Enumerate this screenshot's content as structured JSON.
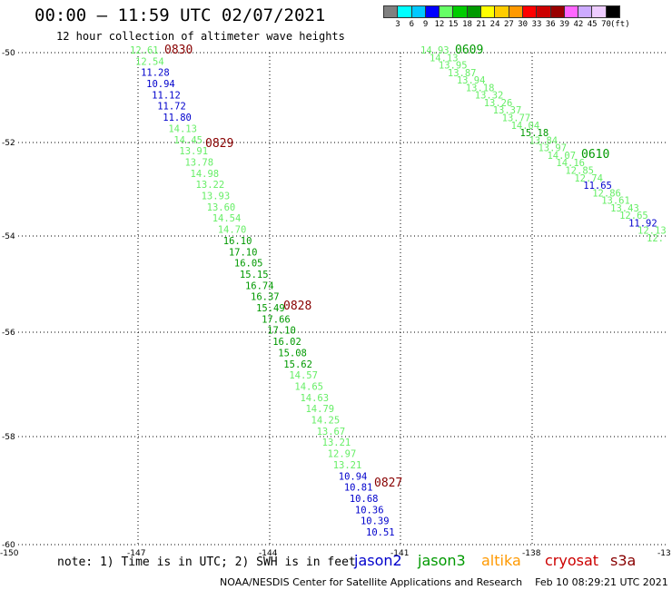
{
  "header": {
    "title": "00:00 — 11:59 UTC 02/07/2021",
    "subtitle": "12 hour collection of altimeter wave heights"
  },
  "color_scale": {
    "colors": [
      "#808080",
      "#00ffff",
      "#00c8ff",
      "#0000ff",
      "#66ff66",
      "#00cc00",
      "#009900",
      "#ffff00",
      "#ffcc00",
      "#ff9900",
      "#ff0000",
      "#cc0000",
      "#990000",
      "#ff66ff",
      "#ccaaff",
      "#eeccff",
      "#000000"
    ],
    "labels": [
      "3",
      "6",
      "9",
      "12",
      "15",
      "18",
      "21",
      "24",
      "27",
      "30",
      "33",
      "36",
      "39",
      "42",
      "45",
      "70",
      "(ft)"
    ]
  },
  "axes": {
    "lat_labels": [
      "-50",
      "-52",
      "-54",
      "-56",
      "-58",
      "-60"
    ],
    "lon_labels": [
      "-150",
      "-147",
      "-144",
      "-141",
      "-138",
      "-13"
    ]
  },
  "track_colors": {
    "blue": "#0000cc",
    "light_green": "#66ee66",
    "dark_green": "#009900",
    "dark_red": "#880000"
  },
  "time_labels": [
    {
      "text": "0830",
      "color": "dark_red"
    },
    {
      "text": "0829",
      "color": "dark_red"
    },
    {
      "text": "0828",
      "color": "dark_red"
    },
    {
      "text": "0827",
      "color": "dark_red"
    },
    {
      "text": "0609",
      "color": "dark_green"
    },
    {
      "text": "0610",
      "color": "dark_green"
    }
  ],
  "track1": [
    {
      "v": "12.61",
      "c": "light_green"
    },
    {
      "v": "12.54",
      "c": "light_green"
    },
    {
      "v": "11.28",
      "c": "blue"
    },
    {
      "v": "10.94",
      "c": "blue"
    },
    {
      "v": "11.12",
      "c": "blue"
    },
    {
      "v": "11.72",
      "c": "blue"
    },
    {
      "v": "11.80",
      "c": "blue"
    },
    {
      "v": "14.13",
      "c": "light_green"
    },
    {
      "v": "14.45",
      "c": "light_green"
    },
    {
      "v": "13.91",
      "c": "light_green"
    },
    {
      "v": "13.78",
      "c": "light_green"
    },
    {
      "v": "14.98",
      "c": "light_green"
    },
    {
      "v": "13.22",
      "c": "light_green"
    },
    {
      "v": "13.93",
      "c": "light_green"
    },
    {
      "v": "13.60",
      "c": "light_green"
    },
    {
      "v": "14.54",
      "c": "light_green"
    },
    {
      "v": "14.70",
      "c": "light_green"
    },
    {
      "v": "16.10",
      "c": "dark_green"
    },
    {
      "v": "17.10",
      "c": "dark_green"
    },
    {
      "v": "16.05",
      "c": "dark_green"
    },
    {
      "v": "15.15",
      "c": "dark_green"
    },
    {
      "v": "16.74",
      "c": "dark_green"
    },
    {
      "v": "16.37",
      "c": "dark_green"
    },
    {
      "v": "15.49",
      "c": "dark_green"
    },
    {
      "v": "17.66",
      "c": "dark_green"
    },
    {
      "v": "17.10",
      "c": "dark_green"
    },
    {
      "v": "16.02",
      "c": "dark_green"
    },
    {
      "v": "15.08",
      "c": "dark_green"
    },
    {
      "v": "15.62",
      "c": "dark_green"
    },
    {
      "v": "14.57",
      "c": "light_green"
    },
    {
      "v": "14.65",
      "c": "light_green"
    },
    {
      "v": "14.63",
      "c": "light_green"
    },
    {
      "v": "14.79",
      "c": "light_green"
    },
    {
      "v": "14.25",
      "c": "light_green"
    },
    {
      "v": "13.67",
      "c": "light_green"
    },
    {
      "v": "13.21",
      "c": "light_green"
    },
    {
      "v": "12.97",
      "c": "light_green"
    },
    {
      "v": "13.21",
      "c": "light_green"
    },
    {
      "v": "10.94",
      "c": "blue"
    },
    {
      "v": "10.81",
      "c": "blue"
    },
    {
      "v": "10.68",
      "c": "blue"
    },
    {
      "v": "10.36",
      "c": "blue"
    },
    {
      "v": "10.39",
      "c": "blue"
    },
    {
      "v": "10.51",
      "c": "blue"
    }
  ],
  "track2": [
    {
      "v": "14.93",
      "c": "light_green"
    },
    {
      "v": "14.13",
      "c": "light_green"
    },
    {
      "v": "13.95",
      "c": "light_green"
    },
    {
      "v": "13.87",
      "c": "light_green"
    },
    {
      "v": "13.94",
      "c": "light_green"
    },
    {
      "v": "13.18",
      "c": "light_green"
    },
    {
      "v": "13.32",
      "c": "light_green"
    },
    {
      "v": "13.26",
      "c": "light_green"
    },
    {
      "v": "13.37",
      "c": "light_green"
    },
    {
      "v": "13.77",
      "c": "light_green"
    },
    {
      "v": "14.04",
      "c": "light_green"
    },
    {
      "v": "15.18",
      "c": "dark_green"
    },
    {
      "v": "13.84",
      "c": "light_green"
    },
    {
      "v": "13.97",
      "c": "light_green"
    },
    {
      "v": "14.07",
      "c": "light_green"
    },
    {
      "v": "14.16",
      "c": "light_green"
    },
    {
      "v": "12.85",
      "c": "light_green"
    },
    {
      "v": "12.74",
      "c": "light_green"
    },
    {
      "v": "11.65",
      "c": "blue"
    },
    {
      "v": "12.86",
      "c": "light_green"
    },
    {
      "v": "13.61",
      "c": "light_green"
    },
    {
      "v": "13.43",
      "c": "light_green"
    },
    {
      "v": "12.65",
      "c": "light_green"
    },
    {
      "v": "11.92",
      "c": "blue"
    },
    {
      "v": "12.13",
      "c": "light_green"
    },
    {
      "v": "12.",
      "c": "light_green"
    }
  ],
  "footer": {
    "note": "note: 1) Time is in UTC; 2) SWH is in feet",
    "legend": [
      {
        "text": "jason2",
        "color": "#0000cc"
      },
      {
        "text": "jason3",
        "color": "#009900"
      },
      {
        "text": "altika",
        "color": "#ff9900"
      },
      {
        "text": "cryosat",
        "color": "#cc0000"
      },
      {
        "text": "s3a",
        "color": "#880000"
      }
    ],
    "credit": "NOAA/NESDIS Center for Satellite Applications and Research    Feb 10 08:29:21 UTC 2021"
  }
}
